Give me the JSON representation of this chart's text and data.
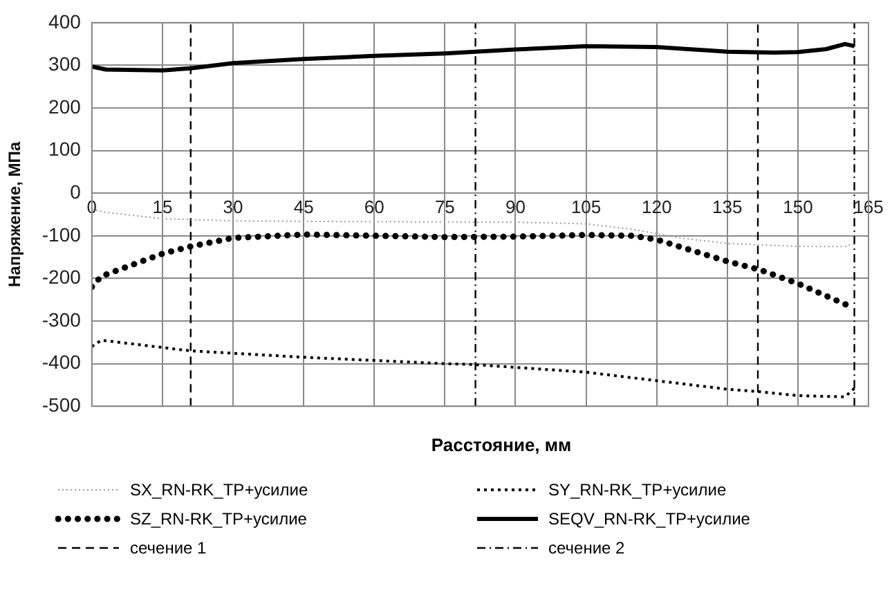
{
  "chart_data": {
    "type": "line",
    "xlabel": "Расстояние, мм",
    "ylabel": "Напряжение, МПа",
    "xlim": [
      0,
      165
    ],
    "xticks": [
      0,
      15,
      30,
      45,
      60,
      75,
      90,
      105,
      120,
      135,
      150,
      165
    ],
    "ylim": [
      -500,
      400
    ],
    "yticks": [
      -500,
      -400,
      -300,
      -200,
      -100,
      0,
      100,
      200,
      300,
      400
    ],
    "grid": true,
    "legend": "bottom",
    "marker": "none",
    "series": [
      {
        "name": "SX_RN-RK_TP+усилие",
        "color": "#9a9a9a",
        "line_style": "dotted",
        "x": [
          0,
          3,
          15,
          30,
          60,
          90,
          105,
          115,
          125,
          135,
          150,
          160,
          162
        ],
        "values": [
          -38,
          -45,
          -60,
          -65,
          -67,
          -68,
          -72,
          -85,
          -105,
          -118,
          -125,
          -125,
          -118
        ]
      },
      {
        "name": "SY_RN-RK_TP+усилие",
        "color": "#000000",
        "line_style": "dotted",
        "x": [
          0,
          2,
          21,
          45,
          75,
          81,
          105,
          120,
          135,
          142,
          150,
          160,
          162
        ],
        "values": [
          -360,
          -345,
          -370,
          -385,
          -400,
          -402,
          -420,
          -440,
          -460,
          -466,
          -475,
          -478,
          -458
        ]
      },
      {
        "name": "SZ_RN-RK_TP+усилие",
        "color": "#000000",
        "line_style": "dotted",
        "x": [
          0,
          2,
          15,
          21,
          30,
          45,
          60,
          75,
          90,
          105,
          115,
          120,
          135,
          142,
          150,
          162
        ],
        "values": [
          -220,
          -195,
          -142,
          -125,
          -105,
          -97,
          -100,
          -103,
          -102,
          -98,
          -100,
          -109,
          -160,
          -180,
          -212,
          -270
        ]
      },
      {
        "name": "SEQV_RN-RK_TP+усилие",
        "color": "#000000",
        "line_style": "solid",
        "x": [
          0,
          3,
          15,
          21,
          30,
          45,
          60,
          75,
          90,
          105,
          120,
          135,
          145,
          150,
          156,
          160,
          162
        ],
        "values": [
          297,
          290,
          288,
          293,
          305,
          315,
          322,
          328,
          337,
          345,
          343,
          332,
          330,
          331,
          338,
          350,
          345
        ]
      }
    ],
    "ref_lines": [
      {
        "axis": "x",
        "value": 21,
        "label": "сечение 1",
        "color": "#000000",
        "line_style": "dashed"
      },
      {
        "axis": "x",
        "value": 81.5,
        "label": "сечение 2",
        "color": "#000000",
        "line_style": "dashdot"
      },
      {
        "axis": "x",
        "value": 141.5,
        "color": "#000000",
        "line_style": "dashed"
      },
      {
        "axis": "x",
        "value": 162,
        "color": "#000000",
        "line_style": "dashdot"
      }
    ]
  }
}
